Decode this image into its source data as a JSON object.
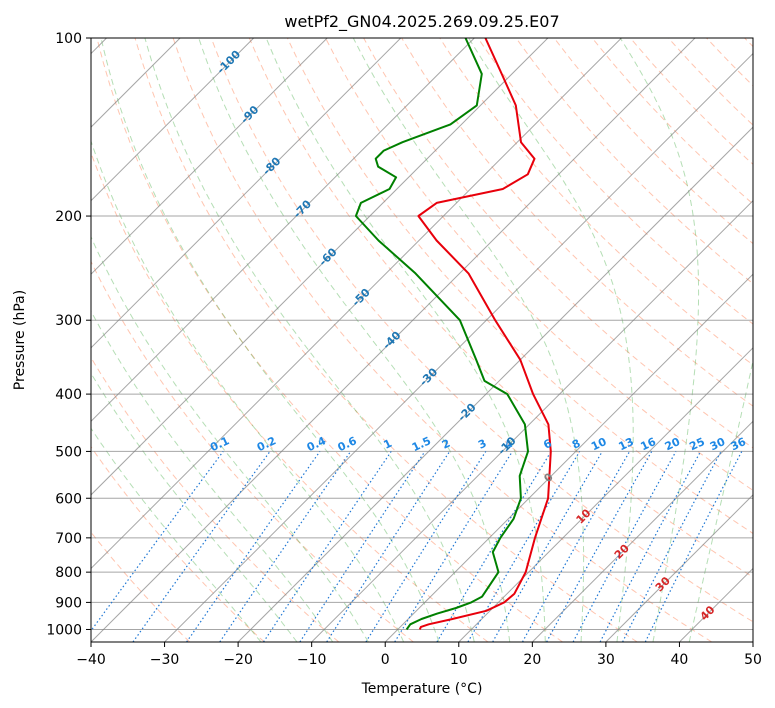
{
  "chart_data": {
    "type": "line",
    "title": "wetPf2_GN04.2025.269.09.25.E07",
    "xlabel": "Temperature (°C)",
    "ylabel": "Pressure (hPa)",
    "xlim": [
      -40,
      50
    ],
    "ylim": [
      1050,
      100
    ],
    "skew": 45,
    "x_ticks": [
      -40,
      -30,
      -20,
      -10,
      0,
      10,
      20,
      30,
      40,
      50
    ],
    "x_tick_labels": [
      "−40",
      "−30",
      "−20",
      "−10",
      "0",
      "10",
      "20",
      "30",
      "40",
      "50"
    ],
    "y_ticks": [
      100,
      200,
      300,
      400,
      500,
      600,
      700,
      800,
      900,
      1000
    ],
    "y_tick_labels": [
      "100",
      "200",
      "300",
      "400",
      "500",
      "600",
      "700",
      "800",
      "900",
      "1000"
    ],
    "isotherm_labels": [
      {
        "value": -100,
        "p": 110,
        "text": "-100"
      },
      {
        "value": -90,
        "p": 135,
        "text": "-90"
      },
      {
        "value": -80,
        "p": 165,
        "text": "-80"
      },
      {
        "value": -70,
        "p": 195,
        "text": "-70"
      },
      {
        "value": -60,
        "p": 235,
        "text": "-60"
      },
      {
        "value": -50,
        "p": 275,
        "text": "-50"
      },
      {
        "value": -40,
        "p": 325,
        "text": "-40"
      },
      {
        "value": -30,
        "p": 375,
        "text": "-30"
      },
      {
        "value": -20,
        "p": 430,
        "text": "-20"
      },
      {
        "value": -10,
        "p": 490,
        "text": "-10"
      },
      {
        "value": 0,
        "p": 555,
        "text": "0"
      },
      {
        "value": 10,
        "p": 645,
        "text": "10"
      },
      {
        "value": 20,
        "p": 740,
        "text": "20"
      },
      {
        "value": 30,
        "p": 840,
        "text": "30"
      },
      {
        "value": 40,
        "p": 940,
        "text": "40"
      }
    ],
    "mixing_ratios": [
      0.1,
      0.2,
      0.4,
      0.6,
      1,
      1.5,
      2,
      3,
      4,
      6,
      8,
      10,
      13,
      16,
      20,
      25,
      30,
      36
    ],
    "mixing_ratio_labels": [
      "0.1",
      "0.2",
      "0.4",
      "0.6",
      "1",
      "1.5",
      "2",
      "3",
      "4",
      "6",
      "8",
      "10",
      "13",
      "16",
      "20",
      "25",
      "30",
      "36"
    ],
    "series": [
      {
        "name": "temperature",
        "color": "#e8000b",
        "points": [
          {
            "p": 1000,
            "t": 3.0
          },
          {
            "p": 990,
            "t": 2.8
          },
          {
            "p": 980,
            "t": 3.5
          },
          {
            "p": 960,
            "t": 6.0
          },
          {
            "p": 930,
            "t": 9.5
          },
          {
            "p": 900,
            "t": 10.8
          },
          {
            "p": 870,
            "t": 11.0
          },
          {
            "p": 800,
            "t": 9.6
          },
          {
            "p": 700,
            "t": 6.2
          },
          {
            "p": 600,
            "t": 2.6
          },
          {
            "p": 500,
            "t": -3.4
          },
          {
            "p": 450,
            "t": -7.4
          },
          {
            "p": 400,
            "t": -13.6
          },
          {
            "p": 350,
            "t": -20.0
          },
          {
            "p": 300,
            "t": -28.8
          },
          {
            "p": 250,
            "t": -38.8
          },
          {
            "p": 220,
            "t": -47.6
          },
          {
            "p": 200,
            "t": -53.4
          },
          {
            "p": 190,
            "t": -52.7
          },
          {
            "p": 180,
            "t": -45.6
          },
          {
            "p": 170,
            "t": -44.2
          },
          {
            "p": 160,
            "t": -45.4
          },
          {
            "p": 150,
            "t": -49.5
          },
          {
            "p": 130,
            "t": -55.2
          },
          {
            "p": 115,
            "t": -61.4
          },
          {
            "p": 100,
            "t": -68.5
          }
        ]
      },
      {
        "name": "dewpoint",
        "color": "#008000",
        "points": [
          {
            "p": 1000,
            "t": 1.2
          },
          {
            "p": 980,
            "t": 1.0
          },
          {
            "p": 960,
            "t": 1.8
          },
          {
            "p": 940,
            "t": 3.2
          },
          {
            "p": 920,
            "t": 5.0
          },
          {
            "p": 900,
            "t": 6.3
          },
          {
            "p": 880,
            "t": 7.0
          },
          {
            "p": 800,
            "t": 5.9
          },
          {
            "p": 740,
            "t": 2.4
          },
          {
            "p": 700,
            "t": 1.5
          },
          {
            "p": 650,
            "t": 0.7
          },
          {
            "p": 600,
            "t": -1.1
          },
          {
            "p": 550,
            "t": -4.3
          },
          {
            "p": 500,
            "t": -6.5
          },
          {
            "p": 450,
            "t": -10.6
          },
          {
            "p": 400,
            "t": -17.1
          },
          {
            "p": 380,
            "t": -22.0
          },
          {
            "p": 350,
            "t": -26.0
          },
          {
            "p": 300,
            "t": -33.6
          },
          {
            "p": 250,
            "t": -46.0
          },
          {
            "p": 220,
            "t": -55.5
          },
          {
            "p": 200,
            "t": -61.9
          },
          {
            "p": 190,
            "t": -63.0
          },
          {
            "p": 180,
            "t": -61.0
          },
          {
            "p": 172,
            "t": -61.7
          },
          {
            "p": 165,
            "t": -65.6
          },
          {
            "p": 160,
            "t": -67.0
          },
          {
            "p": 155,
            "t": -67.0
          },
          {
            "p": 150,
            "t": -65.6
          },
          {
            "p": 140,
            "t": -61.5
          },
          {
            "p": 130,
            "t": -60.5
          },
          {
            "p": 115,
            "t": -64.1
          },
          {
            "p": 100,
            "t": -71.2
          }
        ]
      }
    ]
  }
}
